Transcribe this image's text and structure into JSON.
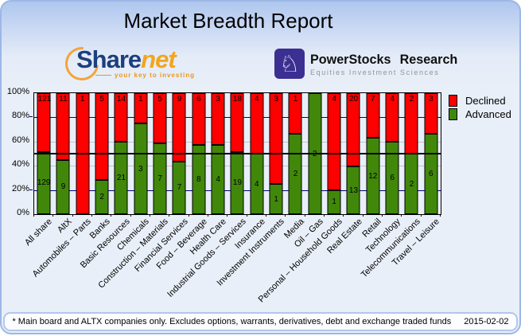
{
  "title": "Market Breadth Report",
  "logos": {
    "sharenet": {
      "word1": "Share",
      "word2": "net",
      "tagline": "your key to investing",
      "icon": "orange-arc-icon"
    },
    "powerstocks": {
      "title": "PowerStocks Research",
      "subtitle": "Equities Investment Sciences",
      "icon": "knight-chess-icon",
      "knight_glyph": "♘",
      "badge_color": "#3b2f92"
    }
  },
  "chart_data": {
    "type": "bar",
    "stacked": true,
    "stacking": "percent",
    "categories": [
      "All share",
      "AltX",
      "Automobiles – Parts",
      "Banks",
      "Basic Resources",
      "Chemicals",
      "Construction – Materials",
      "Financial Services",
      "Food – Beverage",
      "Health Care",
      "Industrial Goods – Services",
      "Insurance",
      "Investment Instruments",
      "Media",
      "Oil – Gas",
      "Personal – Household Goods",
      "Real Estate",
      "Retail",
      "Technology",
      "Telecommunications",
      "Travel – Leisure"
    ],
    "series": [
      {
        "name": "Declined",
        "color": "#fd0000",
        "values": [
          121,
          11,
          1,
          5,
          14,
          1,
          5,
          9,
          6,
          3,
          18,
          4,
          3,
          1,
          0,
          4,
          20,
          7,
          4,
          2,
          3
        ]
      },
      {
        "name": "Advanced",
        "color": "#41880a",
        "values": [
          129,
          9,
          0,
          2,
          21,
          3,
          7,
          7,
          8,
          4,
          19,
          4,
          1,
          2,
          2,
          1,
          13,
          12,
          6,
          2,
          6
        ]
      }
    ],
    "ylabel": "",
    "xlabel": "",
    "ylim": [
      0,
      100
    ],
    "y_ticks": [
      "0%",
      "20%",
      "40%",
      "60%",
      "80%",
      "100%"
    ],
    "grid": "horizontal",
    "reference_line_pct": 50,
    "legend_position": "top-right"
  },
  "footer": {
    "note": "* Main board and ALTX companies only. Excludes options, warrants, derivatives, debt and exchange traded funds",
    "date": "2015-02-02"
  }
}
